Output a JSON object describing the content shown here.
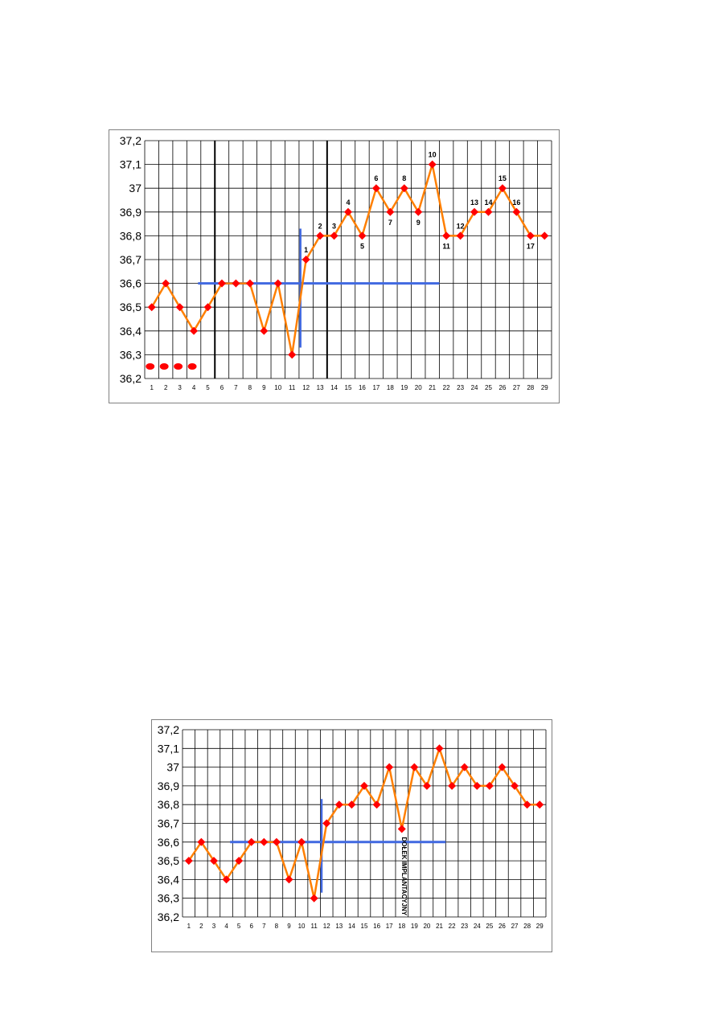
{
  "chart_data": [
    {
      "type": "line",
      "title": "",
      "xlabel": "",
      "ylabel": "",
      "x": [
        1,
        2,
        3,
        4,
        5,
        6,
        7,
        8,
        9,
        10,
        11,
        12,
        13,
        14,
        15,
        16,
        17,
        18,
        19,
        20,
        21,
        22,
        23,
        24,
        25,
        26,
        27,
        28,
        29
      ],
      "x_tick_labels": [
        "1",
        "2",
        "3",
        "4",
        "5",
        "6",
        "7",
        "8",
        "9",
        "10",
        "11",
        "12",
        "13",
        "14",
        "15",
        "16",
        "17",
        "18",
        "19",
        "20",
        "21",
        "22",
        "23",
        "24",
        "25",
        "26",
        "27",
        "28",
        "29"
      ],
      "y_tick_labels": [
        "36,2",
        "36,3",
        "36,4",
        "36,5",
        "36,6",
        "36,7",
        "36,8",
        "36,9",
        "37",
        "37,1",
        "37,2"
      ],
      "ylim": [
        36.2,
        37.2
      ],
      "grid": true,
      "series": [
        {
          "values": [
            36.5,
            36.6,
            36.5,
            36.4,
            36.5,
            36.6,
            36.6,
            36.6,
            36.4,
            36.6,
            36.3,
            36.7,
            36.8,
            36.8,
            36.9,
            36.8,
            37.0,
            36.9,
            37.0,
            36.9,
            37.1,
            36.8,
            36.8,
            36.9,
            36.9,
            37.0,
            36.9,
            36.8,
            36.8
          ]
        }
      ],
      "annotations": [
        {
          "text": "1",
          "x": 12,
          "y": 36.7
        },
        {
          "text": "2",
          "x": 13,
          "y": 36.8
        },
        {
          "text": "3",
          "x": 14,
          "y": 36.8
        },
        {
          "text": "4",
          "x": 15,
          "y": 36.9
        },
        {
          "text": "5",
          "x": 16,
          "y": 36.8
        },
        {
          "text": "6",
          "x": 17,
          "y": 37.0
        },
        {
          "text": "7",
          "x": 18,
          "y": 36.9
        },
        {
          "text": "8",
          "x": 19,
          "y": 37.0
        },
        {
          "text": "9",
          "x": 20,
          "y": 36.9
        },
        {
          "text": "10",
          "x": 21,
          "y": 37.1
        },
        {
          "text": "11",
          "x": 22,
          "y": 36.8
        },
        {
          "text": "12",
          "x": 23,
          "y": 36.8
        },
        {
          "text": "13",
          "x": 24,
          "y": 36.9
        },
        {
          "text": "14",
          "x": 25,
          "y": 36.9
        },
        {
          "text": "15",
          "x": 26,
          "y": 37.0
        },
        {
          "text": "16",
          "x": 27,
          "y": 36.9
        },
        {
          "text": "17",
          "x": 28,
          "y": 36.8
        }
      ],
      "cover_line": {
        "y": 36.6,
        "x_from": 4.3,
        "x_to": 21.5
      },
      "ovulation_line": {
        "x": 11.6,
        "y_from": 36.33,
        "y_to": 36.83
      },
      "bleeding_days": [
        1,
        2,
        3,
        4
      ],
      "bold_verticals_at": [
        5.5,
        13.5
      ],
      "colors": {
        "line": "#ff7f00",
        "marker": "#ff0000",
        "guide": "#4169e1",
        "grid": "#000000"
      }
    },
    {
      "type": "line",
      "title": "",
      "xlabel": "",
      "ylabel": "",
      "x": [
        1,
        2,
        3,
        4,
        5,
        6,
        7,
        8,
        9,
        10,
        11,
        12,
        13,
        14,
        15,
        16,
        17,
        18,
        19,
        20,
        21,
        22,
        23,
        24,
        25,
        26,
        27,
        28,
        29
      ],
      "x_tick_labels": [
        "1",
        "2",
        "3",
        "4",
        "5",
        "6",
        "7",
        "8",
        "9",
        "10",
        "11",
        "12",
        "13",
        "14",
        "15",
        "16",
        "17",
        "18",
        "19",
        "20",
        "21",
        "22",
        "23",
        "24",
        "25",
        "26",
        "27",
        "28",
        "29"
      ],
      "y_tick_labels": [
        "36,2",
        "36,3",
        "36,4",
        "36,5",
        "36,6",
        "36,7",
        "36,8",
        "36,9",
        "37",
        "37,1",
        "37,2"
      ],
      "ylim": [
        36.2,
        37.2
      ],
      "grid": true,
      "series": [
        {
          "values": [
            36.5,
            36.6,
            36.5,
            36.4,
            36.5,
            36.6,
            36.6,
            36.6,
            36.4,
            36.6,
            36.3,
            36.7,
            36.8,
            36.8,
            36.9,
            36.8,
            37.0,
            36.67,
            37.0,
            36.9,
            37.1,
            36.9,
            37.0,
            36.9,
            36.9,
            37.0,
            36.9,
            36.8,
            36.8
          ]
        }
      ],
      "cover_line": {
        "y": 36.6,
        "x_from": 4.3,
        "x_to": 21.5
      },
      "ovulation_line": {
        "x": 11.6,
        "y_from": 36.33,
        "y_to": 36.83
      },
      "vertical_label": {
        "text": "DOŁEK IMPLANTACYJNY",
        "x": 18
      },
      "colors": {
        "line": "#ff7f00",
        "marker": "#ff0000",
        "guide": "#4169e1",
        "grid": "#000000"
      }
    }
  ]
}
